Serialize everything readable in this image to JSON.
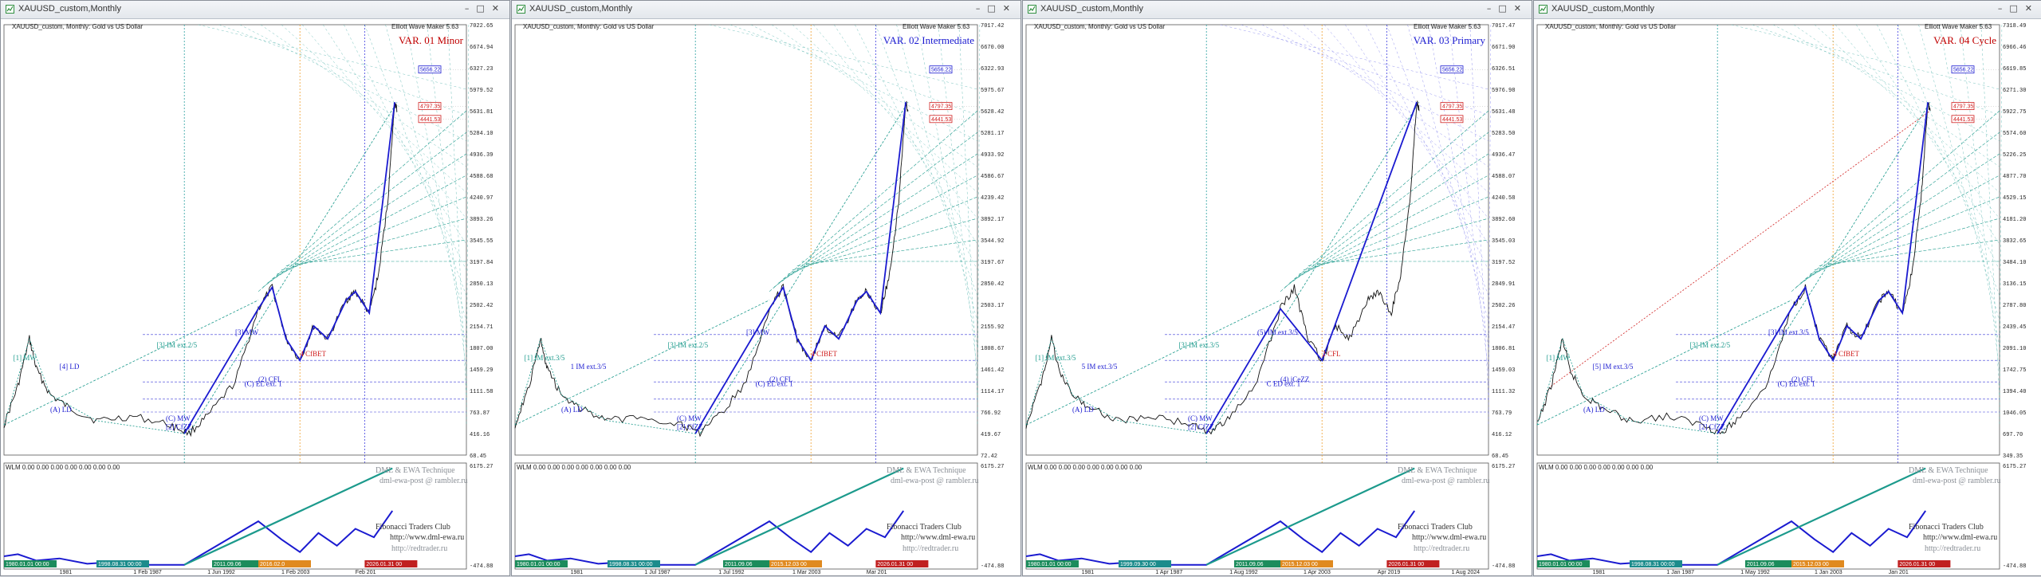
{
  "windows": [
    {
      "title": "XAUUSD_custom,Monthly",
      "symbol_line": "XAUUSD_custom, Monthly:  Gold vs US Dollar",
      "ewm": "Elliott Wave Maker 5.63",
      "variant": "VAR. 01 Minor",
      "variant_color": "#c00000",
      "ticks": [
        "7022.65",
        "6674.94",
        "6327.23",
        "5979.52",
        "5631.81",
        "5284.10",
        "4936.39",
        "4588.68",
        "4240.97",
        "3893.26",
        "3545.55",
        "3197.84",
        "2850.13",
        "2502.42",
        "2154.71",
        "1807.00",
        "1459.29",
        "1111.58",
        "763.87",
        "416.16",
        "68.45"
      ],
      "ind_ticks": [
        "6175.27",
        "-474.88"
      ],
      "dates": [
        "1981",
        "1 Feb 1987",
        "1 Jun 1992",
        "1 Feb 2003",
        "Feb 201"
      ],
      "date_boxes": [
        "1980.01.01 00:00",
        "1998.08.31 00:00",
        "2011.09.06",
        "2016.02.0",
        "2026.01.31 00"
      ],
      "wave_labels": [
        "[1] MW",
        "[3] IM ext.2/5",
        "[3] MW",
        "[4] LD",
        "(A) LD",
        "(C) MW",
        "[2] CfZZ",
        "(C) EL ext. 1",
        "(2) CFL",
        "4 CfBET"
      ]
    },
    {
      "title": "XAUUSD_custom,Monthly",
      "symbol_line": "XAUUSD_custom, Monthly:  Gold vs US Dollar",
      "ewm": "Elliott Wave Maker 5.63",
      "variant": "VAR. 02 Intermediate",
      "variant_color": "#1a1ad0",
      "ticks": [
        "7017.42",
        "6670.00",
        "6322.93",
        "5975.67",
        "5628.42",
        "5281.17",
        "4933.92",
        "4586.67",
        "4239.42",
        "3892.17",
        "3544.92",
        "3197.67",
        "2850.42",
        "2503.17",
        "2155.92",
        "1808.67",
        "1461.42",
        "1114.17",
        "766.92",
        "419.67",
        "72.42"
      ],
      "ind_ticks": [
        "6175.27",
        "-474.88"
      ],
      "dates": [
        "1981",
        "1 Jul 1987",
        "1 Jul 1992",
        "1 Mar 2003",
        "Mar 201"
      ],
      "date_boxes": [
        "1980.01.01 00:00",
        "1998.08.31 00:00",
        "2011.09.06",
        "2015.12.03 00",
        "2026.01.31 00"
      ],
      "wave_labels": [
        "[1] IM ext.3/5",
        "[3] IM ext.2/5",
        "[3] MW",
        "1 IM ext.3/5",
        "(A) LD",
        "(C) MW",
        "[2] CfZZ",
        "(C) EL ext. 1",
        "(2) CFL",
        "4 CfBET"
      ]
    },
    {
      "title": "XAUUSD_custom,Monthly",
      "symbol_line": "XAUUSD_custom, Monthly:  Gold vs US Dollar",
      "ewm": "Elliott Wave Maker 5.63",
      "variant": "VAR. 03 Primary",
      "variant_color": "#1a1ad0",
      "ticks": [
        "7017.47",
        "6671.90",
        "6326.51",
        "5976.98",
        "5631.48",
        "5283.50",
        "4936.47",
        "4588.07",
        "4240.58",
        "3892.60",
        "3545.03",
        "3197.52",
        "2849.91",
        "2502.26",
        "2154.47",
        "1806.81",
        "1459.03",
        "1111.32",
        "763.79",
        "416.12",
        "68.45"
      ],
      "ind_ticks": [
        "6175.27",
        "-474.88"
      ],
      "dates": [
        "1981",
        "1 Apr 1987",
        "1 Aug 1992",
        "1 Apr 2003",
        "Apr 2019",
        "1 Aug 2024"
      ],
      "date_boxes": [
        "1980.01.01 00:00",
        "1999.09.30 00",
        "2011.09.06",
        "2015.12.03 00",
        "2026.01.31 00"
      ],
      "wave_labels": [
        "[1] IM ext.3/5",
        "[3] IM ext.3/5",
        "(5) IM ext.3/5",
        "5 IM ext.3/5",
        "(A) LD",
        "(C) MW",
        "[2] CfZZ",
        "C ED ext. 1",
        "(4) iCeZZ",
        "2 CFL"
      ]
    },
    {
      "title": "XAUUSD_custom,Monthly",
      "symbol_line": "XAUUSD_custom, Monthly:  Gold vs US Dollar",
      "ewm": "Elliott Wave Maker 5.63",
      "variant": "VAR. 04 Cycle",
      "variant_color": "#c00000",
      "ticks": [
        "7318.49",
        "6966.46",
        "6619.85",
        "6271.30",
        "5922.75",
        "5574.60",
        "5226.25",
        "4877.70",
        "4529.15",
        "4181.20",
        "3832.65",
        "3484.10",
        "3136.15",
        "2787.80",
        "2439.45",
        "2091.10",
        "1742.75",
        "1394.40",
        "1046.05",
        "697.70",
        "349.35"
      ],
      "ind_ticks": [
        "6175.27",
        "-474.88"
      ],
      "dates": [
        "1981",
        "1 Jan 1987",
        "1 May 1992",
        "1 Jan 2003",
        "Jan 201"
      ],
      "date_boxes": [
        "1980.01.01 00:00",
        "1998.08.31 00:00",
        "2011.09.06",
        "2015.12.03 00",
        "2026.01.31 00"
      ],
      "wave_labels": [
        "[1] MW",
        "[3] IM ext.2/5",
        "[3] IM ext.3/5",
        "[5] IM ext.3/5",
        "(A) LD",
        "(C) MW",
        "[2] CfZZ",
        "(C) EL ext. 1",
        "(2) CFL",
        "4 CfBET"
      ]
    }
  ],
  "indicator_label": "WLM 0.00 0.00 0.00 0.00 0.00 0.00 0.00",
  "watermark_1": "DML & EWA Technique",
  "watermark_2": "dml-ewa-post @ rambler.ru",
  "credits_1": "Fibonacci   Traders   Club",
  "credits_2": "http://www.dml-ewa.ru",
  "credits_3": "http://redtrader.ru",
  "price_marker_top": "5656.22",
  "price_marker_a": "4797.35",
  "price_marker_b": "4441.53",
  "icon_names": [
    "chart-window-icon",
    "minimize-icon",
    "maximize-icon",
    "close-icon"
  ],
  "colors": {
    "wave_blue": "#1a1ad0",
    "fib_teal": "#1c9a8c",
    "price_black": "#111111",
    "fib_red": "#d02020"
  }
}
